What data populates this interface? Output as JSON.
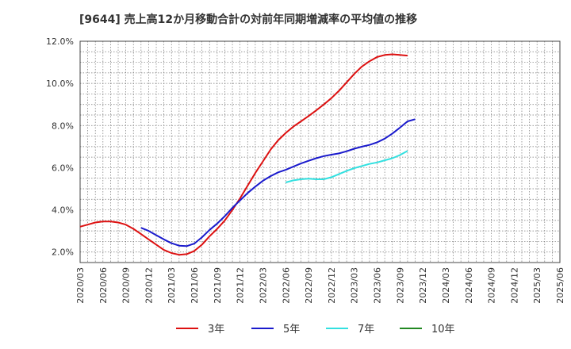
{
  "chart_data": {
    "type": "line",
    "title": "[9644]  売上高12か月移動合計の対前年同期増減率の平均値の推移",
    "y_ticks": [
      "2.0%",
      "4.0%",
      "6.0%",
      "8.0%",
      "10.0%",
      "12.0%"
    ],
    "ylim": [
      1.5,
      12.0
    ],
    "x_ticks": [
      "2020/03",
      "2020/06",
      "2020/09",
      "2020/12",
      "2021/03",
      "2021/06",
      "2021/09",
      "2021/12",
      "2022/03",
      "2022/06",
      "2022/09",
      "2022/12",
      "2023/03",
      "2023/06",
      "2023/09",
      "2023/12",
      "2024/03",
      "2024/06",
      "2024/09",
      "2024/12",
      "2025/03",
      "2025/06"
    ],
    "grid": true,
    "legend_position": "bottom",
    "series": [
      {
        "name": "3年",
        "color": "#dd1111",
        "values": [
          3.2,
          3.3,
          3.4,
          3.45,
          3.45,
          3.4,
          3.3,
          3.1,
          2.85,
          2.6,
          2.35,
          2.1,
          1.95,
          1.87,
          1.9,
          2.05,
          2.35,
          2.75,
          3.1,
          3.5,
          4.0,
          4.55,
          5.15,
          5.75,
          6.3,
          6.85,
          7.3,
          7.65,
          7.95,
          8.2,
          8.45,
          8.72,
          9.0,
          9.3,
          9.65,
          10.05,
          10.45,
          10.8,
          11.05,
          11.25,
          11.35,
          11.38,
          11.35,
          11.32
        ]
      },
      {
        "name": "5年",
        "color": "#1a1acc",
        "values": [
          null,
          null,
          null,
          null,
          null,
          null,
          null,
          null,
          null,
          null,
          null,
          null,
          null,
          null,
          null,
          null,
          null,
          null,
          null,
          null,
          null,
          null,
          null,
          null,
          null,
          null,
          null,
          null,
          null,
          null,
          null,
          null,
          null,
          null,
          null,
          null,
          null,
          null,
          null,
          null,
          null,
          null,
          null,
          null
        ]
      },
      {
        "name": "7年",
        "color": "#33e0e0",
        "values": []
      },
      {
        "name": "10年",
        "color": "#228822",
        "values": []
      }
    ]
  }
}
